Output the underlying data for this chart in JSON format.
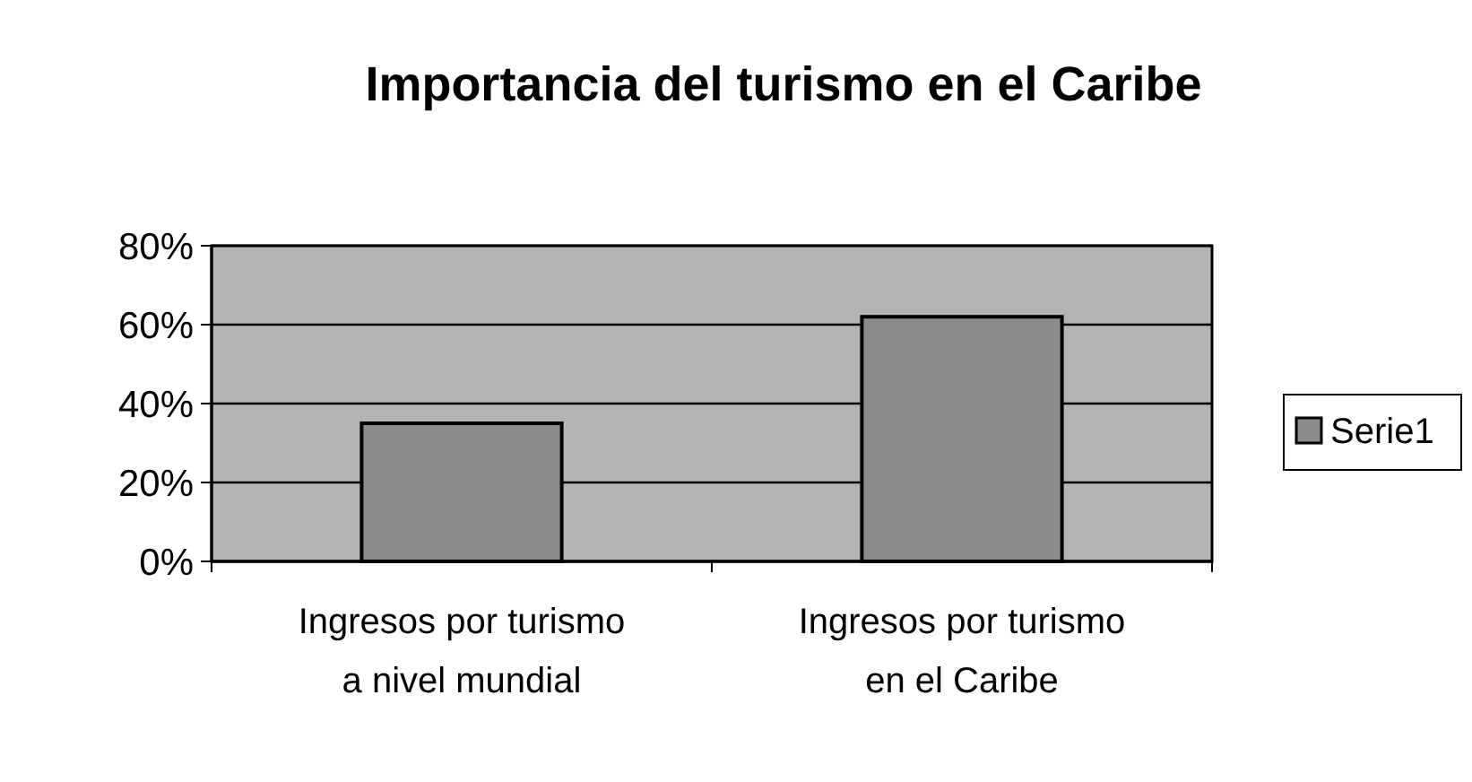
{
  "chart_data": {
    "type": "bar",
    "title": "Importancia del turismo en el Caribe",
    "categories": [
      "Ingresos por turismo\na nivel mundial",
      "Ingresos por turismo\nen el Caribe"
    ],
    "series": [
      {
        "name": "Serie1",
        "color": "#8c8c8c",
        "values": [
          35,
          62
        ]
      }
    ],
    "ylim": [
      0,
      80
    ],
    "yticks": [
      {
        "value": 0,
        "label": "0%"
      },
      {
        "value": 20,
        "label": "20%"
      },
      {
        "value": 40,
        "label": "40%"
      },
      {
        "value": 60,
        "label": "60%"
      },
      {
        "value": 80,
        "label": "80%"
      }
    ],
    "grid": "y",
    "legend": "right"
  }
}
